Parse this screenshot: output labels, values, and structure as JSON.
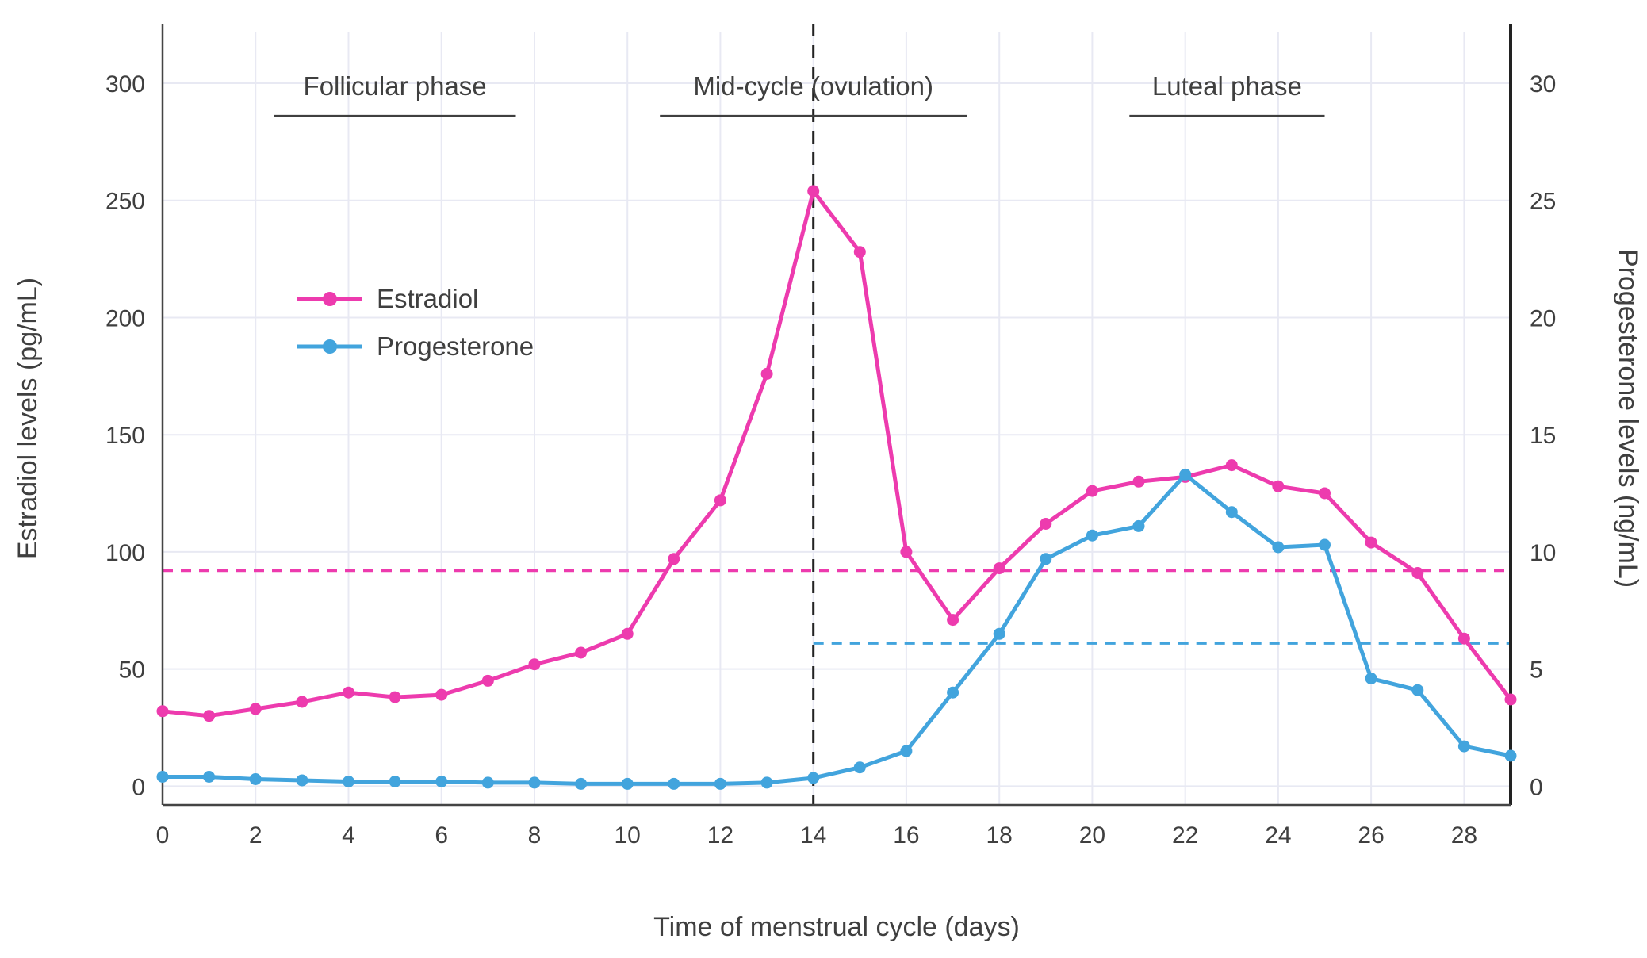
{
  "chart_data": {
    "type": "line",
    "x": [
      0,
      1,
      2,
      3,
      4,
      5,
      6,
      7,
      8,
      9,
      10,
      11,
      12,
      13,
      14,
      15,
      16,
      17,
      18,
      19,
      20,
      21,
      22,
      23,
      24,
      25,
      26,
      27,
      28,
      29
    ],
    "series": [
      {
        "name": "Estradiol",
        "axis": "left",
        "color": "#ED3BAE",
        "values": [
          32,
          30,
          33,
          36,
          40,
          38,
          39,
          45,
          52,
          57,
          65,
          97,
          122,
          176,
          254,
          228,
          100,
          71,
          93,
          112,
          126,
          130,
          132,
          137,
          128,
          125,
          104,
          91,
          63,
          37
        ]
      },
      {
        "name": "Progesterone",
        "axis": "right",
        "color": "#42A4DD",
        "values": [
          0.4,
          0.4,
          0.3,
          0.25,
          0.2,
          0.2,
          0.2,
          0.15,
          0.15,
          0.1,
          0.1,
          0.1,
          0.1,
          0.15,
          0.35,
          0.8,
          1.5,
          4.0,
          6.5,
          9.7,
          10.7,
          11.1,
          13.3,
          11.7,
          10.2,
          10.3,
          4.6,
          4.1,
          1.7,
          1.3
        ]
      }
    ],
    "title": "",
    "xlabel": "Time of menstrual cycle (days)",
    "ylabel_left": "Estradiol levels (pg/mL)",
    "ylabel_right": "Progesterone levels (ng/mL)",
    "x_ticks": [
      0,
      2,
      4,
      6,
      8,
      10,
      12,
      14,
      16,
      18,
      20,
      22,
      24,
      26,
      28
    ],
    "y_ticks_left": [
      0,
      50,
      100,
      150,
      200,
      250,
      300
    ],
    "y_ticks_right": [
      0,
      5,
      10,
      15,
      20,
      25,
      30
    ],
    "xlim": [
      0,
      29
    ],
    "ylim_left": [
      -8,
      322
    ],
    "ylim_right": [
      -0.8,
      32.2
    ],
    "grid": true,
    "legend": {
      "position": "inside-top-left",
      "entries": [
        "Estradiol",
        "Progesterone"
      ]
    },
    "reference_lines": {
      "estradiol_mean": {
        "value": 92,
        "axis": "left",
        "x_start": 0,
        "x_end": 29,
        "style": "dashed",
        "color": "#ED3BAE"
      },
      "progesterone_mean": {
        "value": 6.1,
        "axis": "right",
        "x_start": 14,
        "x_end": 29,
        "style": "dashed",
        "color": "#42A4DD"
      },
      "ovulation_day": {
        "x": 14,
        "orientation": "vertical",
        "style": "dashed",
        "color": "#222222"
      }
    },
    "annotations": [
      {
        "label": "Follicular phase",
        "x_center": 5.0,
        "underline_start": 2.4,
        "underline_end": 7.6
      },
      {
        "label": "Mid-cycle (ovulation)",
        "x_center": 14.0,
        "underline_start": 10.7,
        "underline_end": 17.3
      },
      {
        "label": "Luteal phase",
        "x_center": 22.9,
        "underline_start": 20.8,
        "underline_end": 25.0
      }
    ],
    "colors": {
      "grid": "#E8E9F3",
      "text": "#3F3F3F",
      "spine": "#444444",
      "spine_dark": "#222222",
      "background": "#FFFFFF"
    }
  }
}
